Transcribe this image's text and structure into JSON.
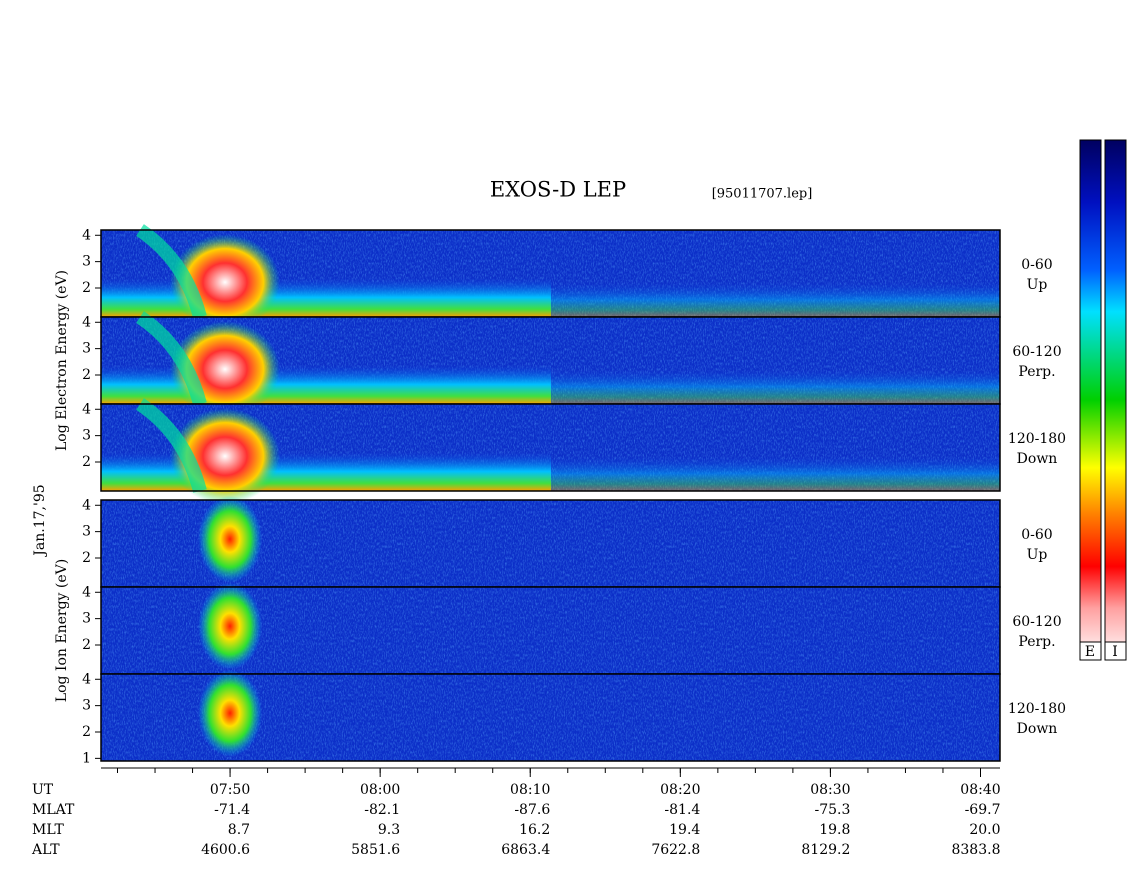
{
  "chart_data": {
    "type": "spectrogram",
    "title": "EXOS-D LEP",
    "file": "[95011707.lep]",
    "date": "Jan.17,'95",
    "groups": [
      {
        "label": "Log  Electron Energy (eV)",
        "panels": [
          {
            "angle": "0-60",
            "direction": "Up",
            "yticks": [
              2,
              3,
              4
            ]
          },
          {
            "angle": "60-120",
            "direction": "Perp.",
            "yticks": [
              2,
              3,
              4
            ]
          },
          {
            "angle": "120-180",
            "direction": "Down",
            "yticks": [
              2,
              3,
              4
            ]
          }
        ]
      },
      {
        "label": "Log  Ion  Energy (eV)",
        "panels": [
          {
            "angle": "0-60",
            "direction": "Up",
            "yticks": [
              2,
              3,
              4
            ]
          },
          {
            "angle": "60-120",
            "direction": "Perp.",
            "yticks": [
              2,
              3,
              4
            ]
          },
          {
            "angle": "120-180",
            "direction": "Down",
            "yticks": [
              1,
              2,
              3,
              4
            ]
          }
        ]
      }
    ],
    "ylim": [
      0.9,
      4.2
    ],
    "xlim": [
      461.4,
      521.3
    ],
    "xticks": [
      {
        "value": 470,
        "label": "07:50"
      },
      {
        "value": 480,
        "label": "08:00"
      },
      {
        "value": 490,
        "label": "08:10"
      },
      {
        "value": 500,
        "label": "08:20"
      },
      {
        "value": 510,
        "label": "08:30"
      },
      {
        "value": 520,
        "label": "08:40"
      }
    ],
    "time_label": "UT",
    "ephemeris": [
      {
        "name": "MLAT",
        "values": [
          "-71.4",
          "-82.1",
          "-87.6",
          "-81.4",
          "-75.3",
          "-69.7"
        ]
      },
      {
        "name": "MLT",
        "values": [
          "8.7",
          "9.3",
          "16.2",
          "19.4",
          "19.8",
          "20.0"
        ]
      },
      {
        "name": "ALT",
        "values": [
          "4600.6",
          "5851.6",
          "6863.4",
          "7622.8",
          "8129.2",
          "8383.8"
        ]
      }
    ],
    "colorbar_labels": [
      "E",
      "I"
    ]
  }
}
